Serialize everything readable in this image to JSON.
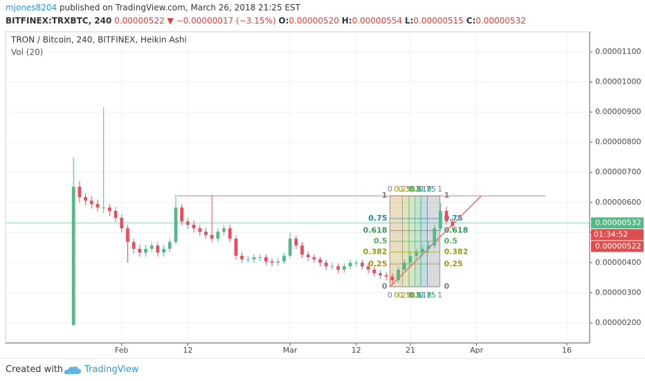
{
  "header": {
    "user": "mjones8204",
    "published": "published on TradingView.com, March 26, 2018 21:25 EST",
    "symbol": "BITFINEX:TRXBTC, 240",
    "price": "0.00000522",
    "arrow": "▼",
    "change": "−0.00000017 (−3.15%)",
    "o_label": "O:",
    "o": "0.00000520",
    "h_label": "H:",
    "h": "0.00000554",
    "l_label": "L:",
    "l": "0.00000515",
    "c_label": "C:",
    "c": "0.00000532"
  },
  "chart_data": {
    "type": "candlestick",
    "title": "TRON / Bitcoin, 240, BITFINEX, Heikin Ashi",
    "indicator": "Vol (20)",
    "up_color": "#53b987",
    "down_color": "#eb4d5c",
    "grid": true,
    "x": [
      24,
      25,
      26,
      27,
      28,
      29,
      30,
      31,
      32,
      33,
      34,
      35,
      36,
      37,
      38,
      39,
      40,
      41,
      42,
      43,
      44,
      45,
      46,
      47,
      48,
      49,
      50,
      51,
      52,
      53,
      54,
      55,
      56,
      57,
      58,
      59,
      60,
      61,
      62,
      63,
      64,
      65,
      66,
      67,
      68,
      69,
      70,
      71,
      72,
      73,
      74,
      75,
      76,
      77,
      78,
      79,
      80,
      81,
      82,
      83,
      84,
      85,
      86,
      87
    ],
    "open": [
      1.93e-06,
      6.52e-06,
      6.18e-06,
      6.06e-06,
      5.95e-06,
      5.83e-06,
      5.83e-06,
      5.72e-06,
      5.49e-06,
      5.14e-06,
      4.69e-06,
      4.46e-06,
      4.34e-06,
      4.46e-06,
      4.57e-06,
      4.34e-06,
      4.46e-06,
      4.69e-06,
      5.83e-06,
      5.37e-06,
      5.26e-06,
      5.14e-06,
      5.03e-06,
      4.92e-06,
      4.8e-06,
      5.03e-06,
      5.14e-06,
      4.8e-06,
      4.23e-06,
      4.11e-06,
      4.11e-06,
      4.18e-06,
      4.18e-06,
      4.04e-06,
      4e-06,
      4.04e-06,
      4.23e-06,
      4.8e-06,
      4.57e-06,
      4.27e-06,
      4.18e-06,
      4.11e-06,
      4e-06,
      3.88e-06,
      3.88e-06,
      3.77e-06,
      3.88e-06,
      4e-06,
      4e-06,
      3.88e-06,
      3.77e-06,
      3.65e-06,
      3.58e-06,
      3.54e-06,
      3.42e-06,
      3.77e-06,
      4e-06,
      4.23e-06,
      4.34e-06,
      4.46e-06,
      4.57e-06,
      5.14e-06,
      5.72e-06,
      5.37e-06
    ],
    "high": [
      7.49e-06,
      6.72e-06,
      6.3e-06,
      6.2e-06,
      6.1e-06,
      9.16e-06,
      5.95e-06,
      5.85e-06,
      5.6e-06,
      5.25e-06,
      4.8e-06,
      4.6e-06,
      4.6e-06,
      4.7e-06,
      4.68e-06,
      4.6e-06,
      4.8e-06,
      6.25e-06,
      5.95e-06,
      5.5e-06,
      5.4e-06,
      5.25e-06,
      5.15e-06,
      6.25e-06,
      5.15e-06,
      5.25e-06,
      5.25e-06,
      4.9e-06,
      4.35e-06,
      4.22e-06,
      4.28e-06,
      4.28e-06,
      4.28e-06,
      4.15e-06,
      4.15e-06,
      4.35e-06,
      5e-06,
      4.9e-06,
      4.68e-06,
      4.38e-06,
      4.28e-06,
      4.2e-06,
      4.1e-06,
      4e-06,
      3.98e-06,
      3.98e-06,
      4.1e-06,
      4.1e-06,
      4.1e-06,
      3.98e-06,
      3.88e-06,
      3.75e-06,
      3.68e-06,
      3.65e-06,
      3.88e-06,
      4.12e-06,
      4.35e-06,
      4.46e-06,
      4.58e-06,
      4.7e-06,
      5.25e-06,
      6e-06,
      5.85e-06,
      5.5e-06
    ],
    "low": [
      1.9e-06,
      6e-06,
      5.9e-06,
      5.8e-06,
      5.7e-06,
      5.65e-06,
      5.55e-06,
      5.35e-06,
      5e-06,
      4e-06,
      4.3e-06,
      4.2e-06,
      4.2e-06,
      4.35e-06,
      4.2e-06,
      4.2e-06,
      4.35e-06,
      4.6e-06,
      5.25e-06,
      5.12e-06,
      5e-06,
      4.9e-06,
      4.8e-06,
      4.68e-06,
      4.7e-06,
      4.9e-06,
      4.68e-06,
      4.1e-06,
      4e-06,
      4e-06,
      4e-06,
      4.05e-06,
      3.92e-06,
      3.88e-06,
      3.9e-06,
      3.95e-06,
      4.15e-06,
      4.45e-06,
      4.15e-06,
      4.05e-06,
      4e-06,
      3.88e-06,
      3.75e-06,
      3.76e-06,
      3.65e-06,
      3.66e-06,
      3.78e-06,
      3.88e-06,
      3.76e-06,
      3.65e-06,
      3.54e-06,
      3.46e-06,
      3.42e-06,
      3.26e-06,
      3.32e-06,
      3.66e-06,
      3.9e-06,
      4.12e-06,
      4.22e-06,
      4.34e-06,
      4.46e-06,
      5.04e-06,
      5.25e-06,
      5.1e-06
    ],
    "close": [
      6.52e-06,
      6.18e-06,
      6.06e-06,
      5.95e-06,
      5.83e-06,
      5.83e-06,
      5.72e-06,
      5.49e-06,
      5.14e-06,
      4.69e-06,
      4.46e-06,
      4.34e-06,
      4.46e-06,
      4.57e-06,
      4.34e-06,
      4.46e-06,
      4.69e-06,
      5.83e-06,
      5.37e-06,
      5.26e-06,
      5.14e-06,
      5.03e-06,
      4.92e-06,
      4.8e-06,
      5.03e-06,
      5.14e-06,
      4.8e-06,
      4.23e-06,
      4.11e-06,
      4.11e-06,
      4.18e-06,
      4.18e-06,
      4.04e-06,
      4e-06,
      4.04e-06,
      4.23e-06,
      4.8e-06,
      4.57e-06,
      4.27e-06,
      4.18e-06,
      4.11e-06,
      4e-06,
      3.88e-06,
      3.88e-06,
      3.77e-06,
      3.88e-06,
      4e-06,
      4e-06,
      3.88e-06,
      3.77e-06,
      3.65e-06,
      3.58e-06,
      3.54e-06,
      3.42e-06,
      3.77e-06,
      4e-06,
      4.23e-06,
      4.34e-06,
      4.46e-06,
      4.57e-06,
      5.14e-06,
      5.72e-06,
      5.37e-06,
      5.22e-06
    ],
    "xlim": [
      12.7,
      109.8
    ],
    "xticks": [
      {
        "value": 32,
        "label": "Feb"
      },
      {
        "value": 43,
        "label": "12"
      },
      {
        "value": 60,
        "label": "Mar"
      },
      {
        "value": 71,
        "label": "12"
      },
      {
        "value": 80,
        "label": "21"
      },
      {
        "value": 91,
        "label": "Apr"
      },
      {
        "value": 106,
        "label": "16"
      }
    ],
    "ylim": [
      1.334e-06,
      1.1666e-05
    ],
    "yticks": [
      {
        "value": 1.1e-05,
        "label": "0.00001100"
      },
      {
        "value": 1e-05,
        "label": "0.00001000"
      },
      {
        "value": 9e-06,
        "label": "0.00000900"
      },
      {
        "value": 8e-06,
        "label": "0.00000800"
      },
      {
        "value": 7e-06,
        "label": "0.00000700"
      },
      {
        "value": 6e-06,
        "label": "0.00000600"
      },
      {
        "value": 5e-06,
        "label": "0.00000500"
      },
      {
        "value": 4e-06,
        "label": "0.00000400"
      },
      {
        "value": 3e-06,
        "label": "0.00000300"
      },
      {
        "value": 2e-06,
        "label": "0.00000200"
      }
    ],
    "horizontal_line": {
      "value": 6.22e-06,
      "x": [
        41.2,
        102.5
      ],
      "color": "#f06b6b"
    },
    "trend_line": {
      "x": [
        76.6,
        91.8
      ],
      "y": [
        3.2e-06,
        6.22e-06
      ],
      "color": "#f06b6b"
    },
    "fib": {
      "x": [
        76.6,
        84.9
      ],
      "low": 3.2e-06,
      "high": 6.22e-06,
      "levels": [
        0,
        0.25,
        0.382,
        0.5,
        0.618,
        0.75,
        1
      ],
      "colors": [
        "#787b86",
        "#b28a1b",
        "#8f9c1e",
        "#4caf50",
        "#2e9c4e",
        "#1e88a8",
        "#787b86"
      ]
    },
    "last_price": {
      "value": 5.32e-06,
      "label": "0.00000532",
      "color": "#53b987"
    },
    "countdown": "01:34:52",
    "close_marker": {
      "value": 5.22e-06,
      "label": "0.00000522",
      "color": "#e04d4d"
    }
  },
  "footer": {
    "created": "Created with",
    "brand": "TradingView"
  }
}
